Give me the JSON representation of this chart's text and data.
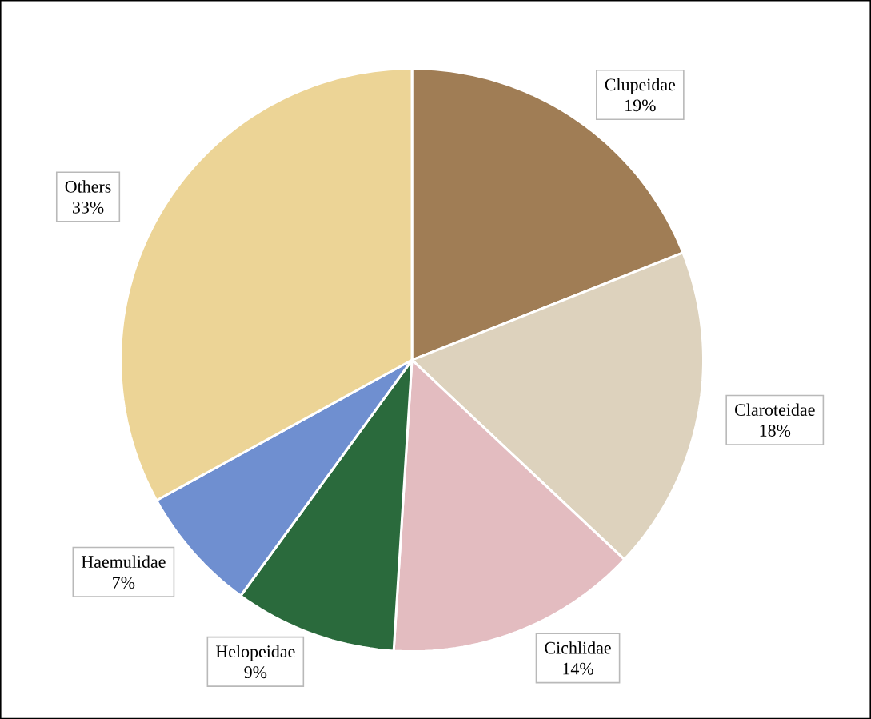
{
  "chart_data": {
    "type": "pie",
    "categories": [
      "Clupeidae",
      "Claroteidae",
      "Cichlidae",
      "Helopeidae",
      "Haemulidae",
      "Others"
    ],
    "values": [
      19,
      18,
      14,
      9,
      7,
      33
    ],
    "value_labels": [
      "19%",
      "18%",
      "14%",
      "9%",
      "7%",
      "33%"
    ],
    "colors": [
      "#a07d55",
      "#ddd2bd",
      "#e3bcc0",
      "#2a6a3c",
      "#6f8fd0",
      "#ecd496"
    ]
  }
}
